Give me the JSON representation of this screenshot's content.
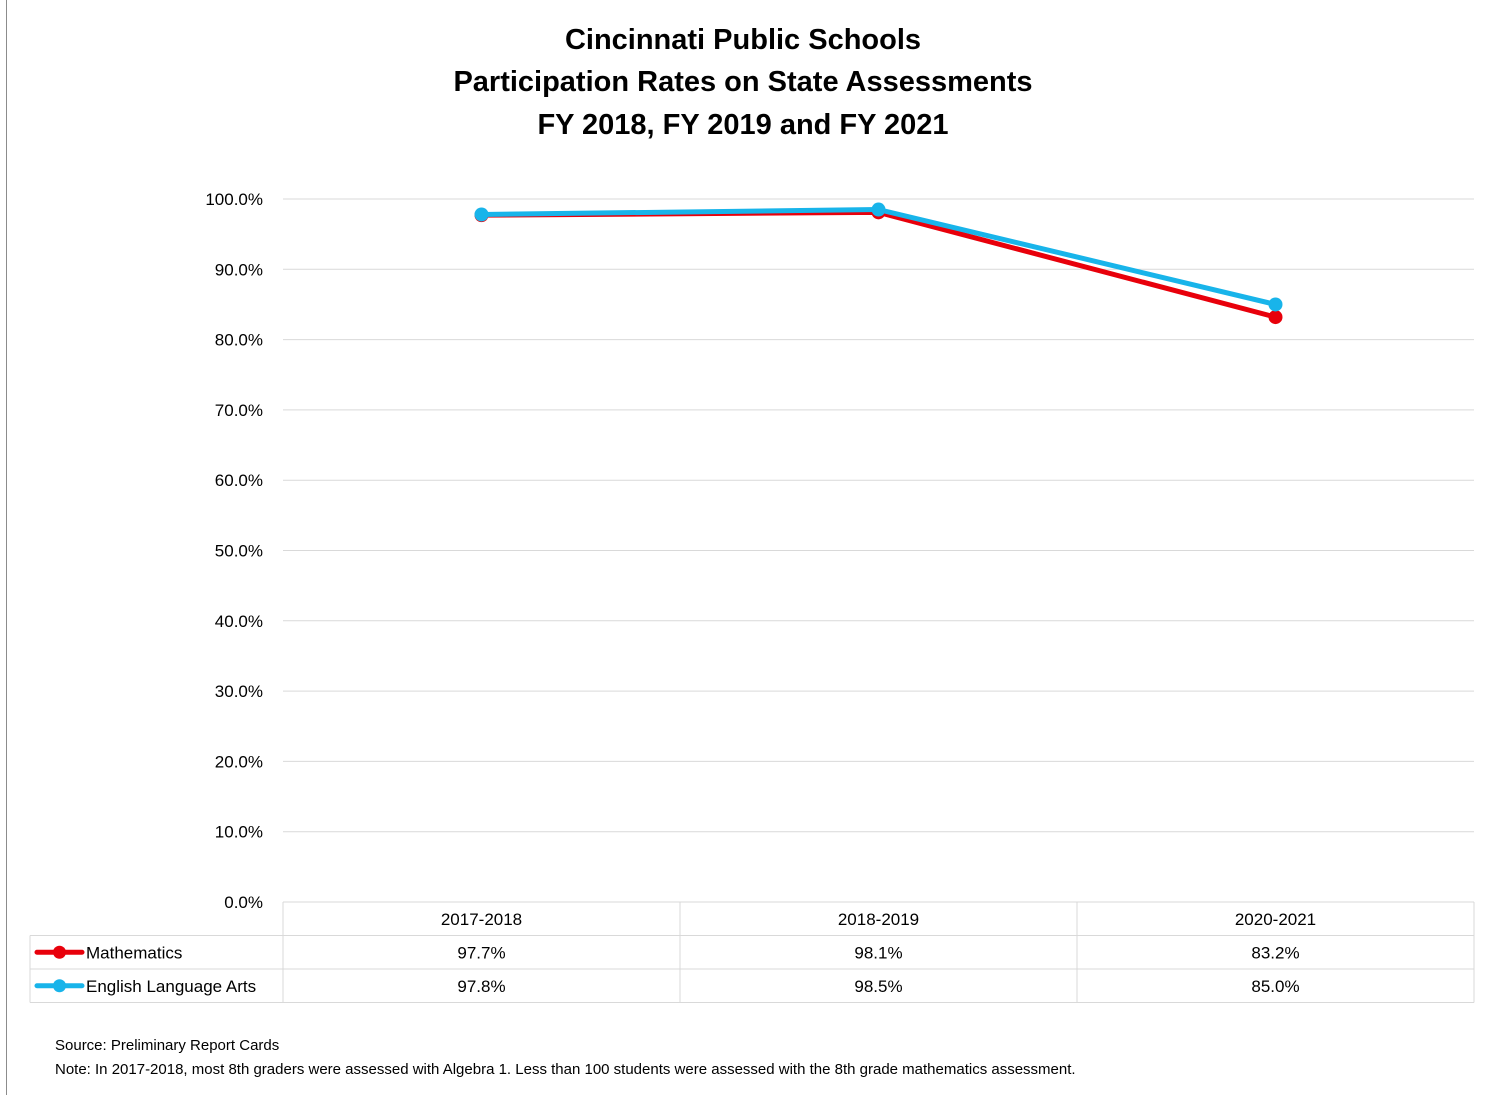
{
  "chart_data": {
    "type": "line",
    "title": [
      "Cincinnati Public Schools",
      "Participation Rates on State Assessments",
      "FY 2018, FY 2019 and FY 2021"
    ],
    "categories": [
      "2017-2018",
      "2018-2019",
      "2020-2021"
    ],
    "series": [
      {
        "name": "Mathematics",
        "values": [
          97.7,
          98.1,
          83.2
        ],
        "labels": [
          "97.7%",
          "98.1%",
          "83.2%"
        ],
        "color": "#e8000b"
      },
      {
        "name": "English Language Arts",
        "values": [
          97.8,
          98.5,
          85.0
        ],
        "labels": [
          "97.8%",
          "98.5%",
          "85.0%"
        ],
        "color": "#18b4ea"
      }
    ],
    "ylim": [
      0,
      100
    ],
    "yticks": [
      "0.0%",
      "10.0%",
      "20.0%",
      "30.0%",
      "40.0%",
      "50.0%",
      "60.0%",
      "70.0%",
      "80.0%",
      "90.0%",
      "100.0%"
    ],
    "grid": true,
    "legend": "data-table"
  },
  "footnotes": {
    "source": "Source: Preliminary Report Cards",
    "note": "Note: In 2017-2018,  most 8th graders were assessed with Algebra 1.  Less than 100 students were assessed with the 8th grade mathematics assessment."
  }
}
